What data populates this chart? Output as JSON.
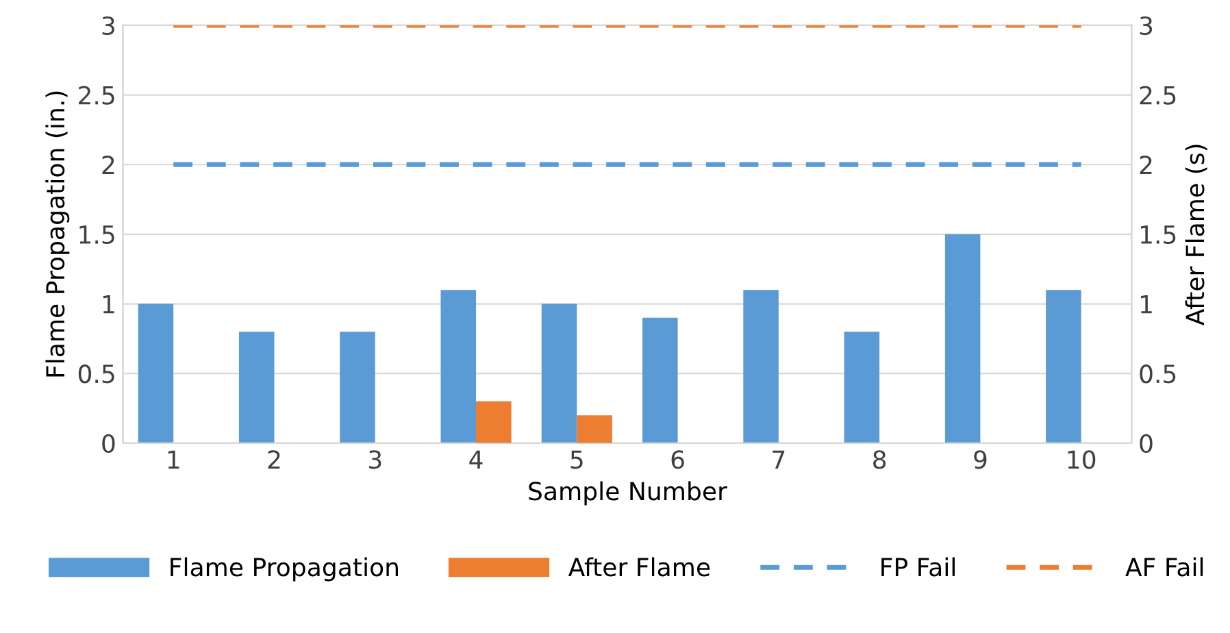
{
  "chart_data": {
    "type": "bar",
    "xlabel": "Sample Number",
    "ylabel": "Flame Propagation (in.)",
    "y2label": "After Flame (s)",
    "categories": [
      "1",
      "2",
      "3",
      "4",
      "5",
      "6",
      "7",
      "8",
      "9",
      "10"
    ],
    "series": [
      {
        "name": "Flame Propagation",
        "color": "#5b9bd5",
        "values": [
          1,
          0.8,
          0.8,
          1.1,
          1,
          0.9,
          1.1,
          0.8,
          1.5,
          1.1
        ]
      },
      {
        "name": "After Flame",
        "color": "#ed7d31",
        "axis": "y2",
        "values": [
          0,
          0,
          0,
          0.3,
          0.2,
          0,
          0,
          0,
          0,
          0
        ]
      },
      {
        "name": "FP Fail",
        "type": "line",
        "line_style": "dashed",
        "color": "#5b9bd5",
        "values": [
          2,
          2,
          2,
          2,
          2,
          2,
          2,
          2,
          2,
          2
        ]
      },
      {
        "name": "AF Fail",
        "type": "line",
        "line_style": "dashed",
        "color": "#ed7d31",
        "axis": "y2",
        "values": [
          3,
          3,
          3,
          3,
          3,
          3,
          3,
          3,
          3,
          3
        ]
      }
    ],
    "ylim": [
      0,
      3
    ],
    "yticks": [
      0,
      0.5,
      1,
      1.5,
      2,
      2.5,
      3
    ],
    "y2lim": [
      0,
      3
    ],
    "y2ticks": [
      0,
      0.5,
      1,
      1.5,
      2,
      2.5,
      3
    ],
    "grid": "y",
    "legend": "bottom",
    "marker": "none"
  }
}
